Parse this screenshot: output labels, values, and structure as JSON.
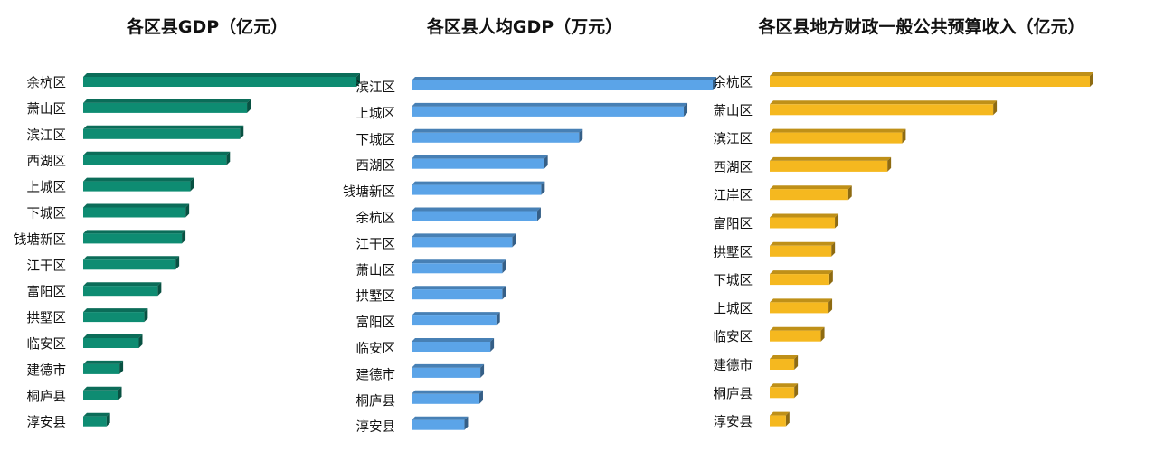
{
  "chart_data": [
    {
      "type": "bar",
      "orientation": "horizontal",
      "title": "各区县GDP（亿元）",
      "color": "#0E8C72",
      "categories": [
        "余杭区",
        "萧山区",
        "滨江区",
        "西湖区",
        "上城区",
        "下城区",
        "钱塘新区",
        "江干区",
        "富阳区",
        "拱墅区",
        "临安区",
        "建德市",
        "桐庐县",
        "淳安县"
      ],
      "values": [
        2824,
        1693,
        1620,
        1480,
        1107,
        1058,
        1020,
        955,
        770,
        630,
        575,
        375,
        360,
        240
      ],
      "xlim": [
        0,
        2824
      ],
      "grid": false,
      "legend": false
    },
    {
      "type": "bar",
      "orientation": "horizontal",
      "title": "各区县人均GDP（万元）",
      "color": "#5BA4E8",
      "categories": [
        "滨江区",
        "上城区",
        "下城区",
        "西湖区",
        "钱塘新区",
        "余杭区",
        "江干区",
        "萧山区",
        "拱墅区",
        "富阳区",
        "临安区",
        "建德市",
        "桐庐县",
        "淳安县"
      ],
      "values": [
        30.2,
        27.3,
        16.8,
        13.3,
        13.0,
        12.6,
        10.1,
        9.1,
        9.1,
        8.5,
        7.9,
        6.9,
        6.8,
        5.3
      ],
      "xlim": [
        0,
        30.2
      ],
      "grid": false,
      "legend": false
    },
    {
      "type": "bar",
      "orientation": "horizontal",
      "title": "各区县地方财政一般公共预算收入（亿元）",
      "color": "#F5B81F",
      "categories": [
        "余杭区",
        "萧山区",
        "滨江区",
        "西湖区",
        "江岸区",
        "富阳区",
        "拱墅区",
        "下城区",
        "上城区",
        "临安区",
        "建德市",
        "桐庐县",
        "淳安县"
      ],
      "values": [
        457,
        319,
        189,
        168,
        112,
        93,
        88,
        85,
        84,
        73,
        35,
        35,
        23
      ],
      "xlim": [
        0,
        457
      ],
      "grid": false,
      "legend": false
    }
  ]
}
